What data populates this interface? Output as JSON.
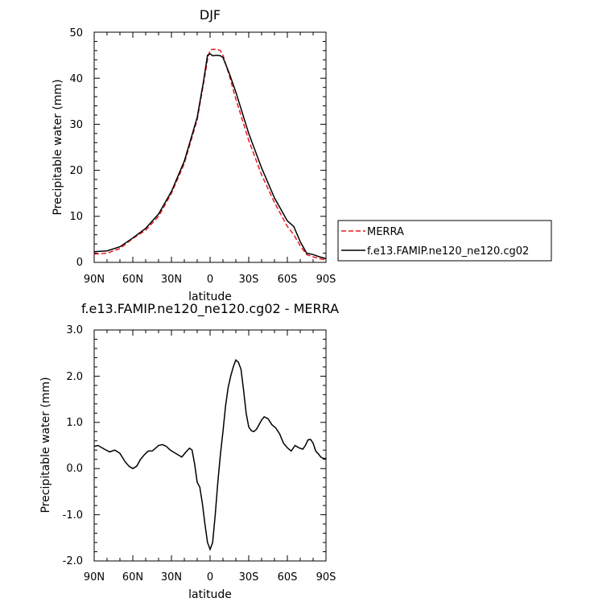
{
  "chart_data": [
    {
      "type": "line",
      "title": "DJF",
      "xlabel": "latitude",
      "ylabel": "Precipitable water (mm)",
      "xlim": [
        90,
        -90
      ],
      "ylim": [
        0,
        50
      ],
      "x_ticks": [
        90,
        60,
        30,
        0,
        -30,
        -60,
        -90
      ],
      "x_tick_labels": [
        "90N",
        "60N",
        "30N",
        "0",
        "30S",
        "60S",
        "90S"
      ],
      "y_ticks": [
        0,
        10,
        20,
        30,
        40,
        50
      ],
      "y_tick_labels": [
        "0",
        "10",
        "20",
        "30",
        "40",
        "50"
      ],
      "grid": false,
      "legend": "right",
      "series": [
        {
          "name": "MERRA",
          "color": "#e8191f",
          "dash": true,
          "x": [
            90,
            80,
            70,
            60,
            50,
            40,
            30,
            20,
            10,
            5,
            2,
            0,
            -3,
            -6,
            -8,
            -10,
            -15,
            -20,
            -30,
            -40,
            -50,
            -60,
            -65,
            -70,
            -75,
            -80,
            -85,
            -90
          ],
          "y": [
            1.8,
            2.0,
            3.0,
            5.2,
            7.0,
            10.0,
            15.0,
            21.5,
            31.0,
            39.0,
            44.0,
            46.2,
            46.3,
            46.2,
            46.0,
            45.0,
            40.5,
            35.5,
            26.5,
            19.0,
            13.0,
            7.8,
            6.0,
            3.6,
            1.7,
            1.2,
            0.8,
            0.5
          ]
        },
        {
          "name": "f.e13.FAMIP.ne120_ne120.cg02",
          "color": "#000000",
          "dash": false,
          "x": [
            90,
            80,
            70,
            60,
            50,
            40,
            30,
            20,
            10,
            5,
            2,
            0,
            -2,
            -5,
            -8,
            -10,
            -15,
            -20,
            -30,
            -40,
            -50,
            -60,
            -65,
            -70,
            -75,
            -80,
            -85,
            -90
          ],
          "y": [
            2.3,
            2.5,
            3.4,
            5.3,
            7.4,
            10.5,
            15.4,
            22.0,
            31.5,
            39.5,
            45.0,
            45.3,
            44.9,
            45.0,
            44.9,
            44.5,
            41.0,
            37.0,
            28.0,
            20.5,
            14.0,
            9.0,
            7.8,
            4.5,
            2.0,
            1.7,
            1.2,
            0.8
          ]
        }
      ]
    },
    {
      "type": "line",
      "title": "f.e13.FAMIP.ne120_ne120.cg02 - MERRA",
      "xlabel": "latitude",
      "ylabel": "Precipitable water (mm)",
      "xlim": [
        90,
        -90
      ],
      "ylim": [
        -2.0,
        3.0
      ],
      "x_ticks": [
        90,
        60,
        30,
        0,
        -30,
        -60,
        -90
      ],
      "x_tick_labels": [
        "90N",
        "60N",
        "30N",
        "0",
        "30S",
        "60S",
        "90S"
      ],
      "y_ticks": [
        -2.0,
        -1.0,
        0.0,
        1.0,
        2.0,
        3.0
      ],
      "y_tick_labels": [
        "-2.0",
        "-1.0",
        "0.0",
        "1.0",
        "2.0",
        "3.0"
      ],
      "grid": false,
      "series": [
        {
          "color": "#000000",
          "x": [
            90,
            87,
            82,
            78,
            74,
            70,
            66,
            63,
            60,
            57,
            54,
            51,
            48,
            45,
            42,
            40,
            37,
            34,
            31,
            28,
            25,
            22,
            19,
            16,
            14,
            12,
            10,
            8,
            6,
            4,
            2,
            0,
            -2,
            -4,
            -6,
            -8,
            -10,
            -12,
            -14,
            -16,
            -18,
            -20,
            -22,
            -24,
            -26,
            -28,
            -30,
            -32,
            -34,
            -36,
            -38,
            -40,
            -42,
            -45,
            -48,
            -51,
            -54,
            -57,
            -60,
            -63,
            -66,
            -69,
            -72,
            -74,
            -76,
            -78,
            -80,
            -82,
            -84,
            -86,
            -88,
            -90
          ],
          "y": [
            0.48,
            0.5,
            0.42,
            0.36,
            0.4,
            0.33,
            0.15,
            0.05,
            0.0,
            0.05,
            0.2,
            0.3,
            0.38,
            0.38,
            0.45,
            0.5,
            0.52,
            0.48,
            0.4,
            0.35,
            0.3,
            0.25,
            0.35,
            0.44,
            0.4,
            0.1,
            -0.3,
            -0.4,
            -0.75,
            -1.2,
            -1.6,
            -1.75,
            -1.6,
            -1.0,
            -0.3,
            0.3,
            0.8,
            1.35,
            1.75,
            2.0,
            2.2,
            2.35,
            2.3,
            2.15,
            1.7,
            1.2,
            0.9,
            0.82,
            0.8,
            0.85,
            0.95,
            1.05,
            1.12,
            1.08,
            0.95,
            0.88,
            0.75,
            0.55,
            0.45,
            0.38,
            0.5,
            0.45,
            0.42,
            0.5,
            0.62,
            0.63,
            0.55,
            0.38,
            0.32,
            0.25,
            0.22,
            0.22
          ]
        }
      ]
    }
  ]
}
